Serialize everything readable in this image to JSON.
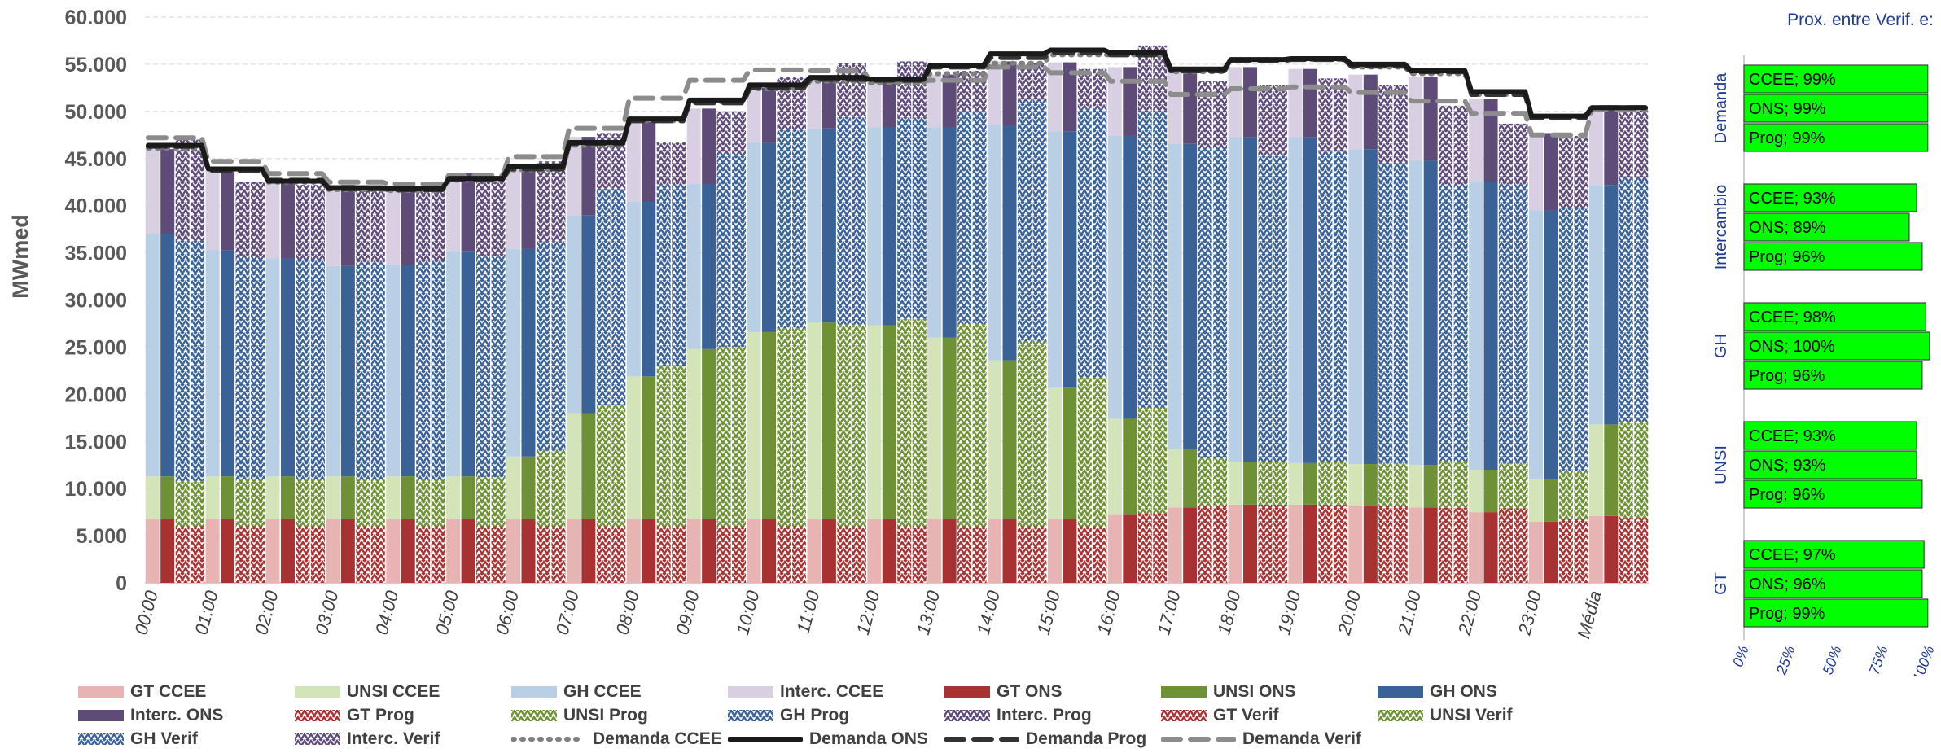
{
  "chart_data": [
    {
      "type": "bar",
      "ylabel": "MWmed",
      "ylim": [
        0,
        60000
      ],
      "yticks": [
        "0",
        "5.000",
        "10.000",
        "15.000",
        "20.000",
        "25.000",
        "30.000",
        "35.000",
        "40.000",
        "45.000",
        "50.000",
        "55.000",
        "60.000"
      ],
      "categories": [
        "00:00",
        "01:00",
        "02:00",
        "03:00",
        "04:00",
        "05:00",
        "06:00",
        "07:00",
        "08:00",
        "09:00",
        "10:00",
        "11:00",
        "12:00",
        "13:00",
        "14:00",
        "15:00",
        "16:00",
        "17:00",
        "18:00",
        "19:00",
        "20:00",
        "21:00",
        "22:00",
        "23:00",
        "Média"
      ],
      "bar_groups": [
        "CCEE",
        "ONS",
        "Prog",
        "Verif"
      ],
      "stacked_series": [
        {
          "name": "GT CCEE",
          "group": "CCEE",
          "color": "#e8b4b3",
          "values": [
            6800,
            6800,
            6800,
            6800,
            6800,
            6800,
            6800,
            6800,
            6800,
            6800,
            6800,
            6800,
            6800,
            6800,
            6800,
            6800,
            7200,
            8000,
            8300,
            8300,
            8200,
            8000,
            7500,
            6500,
            7100
          ]
        },
        {
          "name": "UNSI CCEE",
          "group": "CCEE",
          "color": "#d3e4b8",
          "values": [
            4500,
            4500,
            4500,
            4500,
            4500,
            4500,
            6600,
            11200,
            15100,
            18000,
            19800,
            20800,
            20500,
            19200,
            16800,
            13900,
            10200,
            6200,
            4500,
            4400,
            4400,
            4500,
            4500,
            4500,
            9700
          ]
        },
        {
          "name": "GH CCEE",
          "group": "CCEE",
          "color": "#b8cfe6",
          "values": [
            25700,
            24000,
            23100,
            22300,
            22400,
            23900,
            22000,
            21000,
            18500,
            17500,
            20100,
            20600,
            21000,
            22300,
            25000,
            27200,
            30000,
            32400,
            34500,
            34600,
            33400,
            32300,
            30500,
            28500,
            25400
          ]
        },
        {
          "name": "Interc. CCEE",
          "group": "CCEE",
          "color": "#d9cfe2",
          "values": [
            9000,
            8600,
            8300,
            8600,
            8300,
            8300,
            8700,
            8300,
            8500,
            8000,
            5800,
            5200,
            4800,
            5600,
            6700,
            7300,
            7300,
            7600,
            7400,
            7200,
            7900,
            8900,
            8800,
            8200,
            8200
          ]
        },
        {
          "name": "GT ONS",
          "group": "ONS",
          "color": "#a83232",
          "values": [
            6800,
            6800,
            6800,
            6800,
            6800,
            6800,
            6800,
            6800,
            6800,
            6800,
            6800,
            6800,
            6800,
            6800,
            6800,
            6800,
            7200,
            8000,
            8300,
            8300,
            8200,
            8000,
            7500,
            6500,
            7100
          ]
        },
        {
          "name": "UNSI ONS",
          "group": "ONS",
          "color": "#6e9136",
          "values": [
            4500,
            4500,
            4500,
            4500,
            4500,
            4500,
            6600,
            11200,
            15100,
            18000,
            19800,
            20800,
            20500,
            19200,
            16800,
            13900,
            10200,
            6200,
            4500,
            4400,
            4400,
            4500,
            4500,
            4500,
            9700
          ]
        },
        {
          "name": "GH ONS",
          "group": "ONS",
          "color": "#3b6296",
          "values": [
            25700,
            24000,
            23100,
            22300,
            22400,
            23900,
            22000,
            21000,
            18500,
            17500,
            20100,
            20600,
            21000,
            22300,
            25000,
            27200,
            30000,
            32400,
            34500,
            34600,
            33400,
            32300,
            30500,
            28500,
            25400
          ]
        },
        {
          "name": "Interc. ONS",
          "group": "ONS",
          "color": "#5e4b78",
          "values": [
            9000,
            8600,
            8300,
            8600,
            8300,
            8300,
            8700,
            8300,
            8500,
            8000,
            5800,
            5200,
            4800,
            5600,
            6700,
            7300,
            7300,
            7600,
            7400,
            7200,
            7900,
            8900,
            8800,
            8200,
            8200
          ]
        },
        {
          "name": "GT Prog",
          "group": "Prog",
          "color": "#a83232",
          "values": [
            6000,
            6000,
            6000,
            6000,
            6000,
            6000,
            6000,
            6000,
            6000,
            6000,
            6000,
            6000,
            6000,
            6000,
            6000,
            6000,
            7400,
            8200,
            8300,
            8300,
            8200,
            8000,
            7900,
            6800,
            6900
          ]
        },
        {
          "name": "UNSI Prog",
          "group": "Prog",
          "color": "#6e9136",
          "values": [
            4800,
            5000,
            5000,
            5000,
            5000,
            5200,
            8000,
            12800,
            17000,
            19000,
            21000,
            21400,
            22000,
            21500,
            19600,
            15800,
            11200,
            5000,
            4500,
            4500,
            4500,
            4900,
            4800,
            5000,
            10200
          ]
        },
        {
          "name": "GH Prog",
          "group": "Prog",
          "color": "#3b6296",
          "values": [
            25500,
            23500,
            23200,
            23000,
            23100,
            23400,
            22200,
            23000,
            19200,
            20500,
            21000,
            22000,
            21300,
            22500,
            25500,
            28500,
            31500,
            33000,
            32500,
            32900,
            31800,
            29300,
            29600,
            28000,
            25800
          ]
        },
        {
          "name": "Interc. Prog",
          "group": "Prog",
          "color": "#5e4b78",
          "values": [
            10700,
            8000,
            8000,
            7900,
            7800,
            8000,
            8500,
            5900,
            4500,
            4500,
            5700,
            5700,
            6000,
            4300,
            4000,
            4200,
            6900,
            7000,
            7500,
            7800,
            8300,
            8400,
            6400,
            7600,
            7200
          ]
        },
        {
          "name": "GT Verif",
          "group": "Verif",
          "color": "#a83232",
          "values": [
            6000,
            6000,
            6000,
            6000,
            6000,
            6000,
            6000,
            6000,
            6000,
            6000,
            6000,
            6000,
            6000,
            6000,
            6000,
            6000,
            7400,
            8200,
            8300,
            8300,
            8200,
            8000,
            7900,
            6800,
            6900
          ]
        },
        {
          "name": "UNSI Verif",
          "group": "Verif",
          "color": "#6e9136",
          "values": [
            4800,
            5000,
            5000,
            5000,
            5000,
            5200,
            8000,
            12800,
            17000,
            19000,
            21000,
            21400,
            22000,
            21500,
            19600,
            15800,
            11200,
            5000,
            4500,
            4500,
            4500,
            4900,
            4800,
            5000,
            10200
          ]
        },
        {
          "name": "GH Verif",
          "group": "Verif",
          "color": "#3b6296",
          "values": [
            25500,
            23500,
            23200,
            23000,
            23100,
            23400,
            22200,
            23000,
            19200,
            20500,
            21000,
            22000,
            21300,
            22500,
            25500,
            28500,
            31500,
            33000,
            32500,
            32900,
            31800,
            29300,
            29600,
            28000,
            25800
          ]
        },
        {
          "name": "Interc. Verif",
          "group": "Verif",
          "color": "#5e4b78",
          "values": [
            10700,
            8000,
            8000,
            7900,
            7800,
            8000,
            8500,
            5900,
            4500,
            4500,
            5700,
            5700,
            6000,
            4300,
            4000,
            4200,
            6900,
            7000,
            7500,
            7800,
            8300,
            8400,
            6400,
            7600,
            7200
          ]
        }
      ],
      "line_series": [
        {
          "name": "Demanda CCEE",
          "style": "dotted",
          "color": "#808080",
          "values": [
            46100,
            43800,
            42500,
            41700,
            41600,
            42700,
            43800,
            46400,
            49000,
            51000,
            52400,
            53200,
            53000,
            54000,
            55100,
            56000,
            56000,
            54200,
            55500,
            55500,
            54700,
            54000,
            51800,
            49400,
            50400
          ]
        },
        {
          "name": "Demanda ONS",
          "style": "solid",
          "color": "#1a1a1a",
          "values": [
            46400,
            43900,
            42600,
            41900,
            41800,
            42900,
            44200,
            46700,
            49200,
            51200,
            52800,
            53600,
            53400,
            54900,
            56100,
            56500,
            56200,
            54500,
            55500,
            55600,
            55000,
            54300,
            52100,
            49500,
            50400
          ]
        },
        {
          "name": "Demanda Prog",
          "style": "dash",
          "color": "#333333",
          "values": [
            46300,
            43700,
            42700,
            41800,
            41700,
            42800,
            43900,
            46600,
            49000,
            50900,
            52500,
            53400,
            53300,
            54700,
            55700,
            56200,
            56000,
            54300,
            55400,
            55500,
            54800,
            54200,
            51800,
            49300,
            50400
          ]
        },
        {
          "name": "Demanda Verif",
          "style": "dash",
          "color": "#8c8c8c",
          "values": [
            47200,
            44700,
            43400,
            42500,
            42300,
            43200,
            45200,
            48200,
            51400,
            53300,
            54400,
            54300,
            53200,
            53300,
            54700,
            54100,
            53200,
            51800,
            52400,
            52600,
            52000,
            51100,
            49800,
            47500,
            50200
          ]
        }
      ]
    },
    {
      "type": "bar",
      "orientation": "horizontal",
      "title": "Prox. entre Verif. e:",
      "xlim": [
        0,
        100
      ],
      "xticks": [
        "0%",
        "25%",
        "50%",
        "75%",
        "100%"
      ],
      "groups": [
        {
          "name": "Demanda",
          "bars": [
            {
              "label": "CCEE; 99%",
              "value": 99
            },
            {
              "label": "ONS; 99%",
              "value": 99
            },
            {
              "label": "Prog; 99%",
              "value": 99
            }
          ]
        },
        {
          "name": "Intercambio",
          "bars": [
            {
              "label": "CCEE; 93%",
              "value": 93
            },
            {
              "label": "ONS; 89%",
              "value": 89
            },
            {
              "label": "Prog; 96%",
              "value": 96
            }
          ]
        },
        {
          "name": "GH",
          "bars": [
            {
              "label": "CCEE; 98%",
              "value": 98
            },
            {
              "label": "ONS; 100%",
              "value": 100
            },
            {
              "label": "Prog; 96%",
              "value": 96
            }
          ]
        },
        {
          "name": "UNSI",
          "bars": [
            {
              "label": "CCEE; 93%",
              "value": 93
            },
            {
              "label": "ONS; 93%",
              "value": 93
            },
            {
              "label": "Prog; 96%",
              "value": 96
            }
          ]
        },
        {
          "name": "GT",
          "bars": [
            {
              "label": "CCEE; 97%",
              "value": 97
            },
            {
              "label": "ONS; 96%",
              "value": 96
            },
            {
              "label": "Prog; 99%",
              "value": 99
            }
          ]
        }
      ],
      "bar_color": "#00ff00"
    }
  ]
}
